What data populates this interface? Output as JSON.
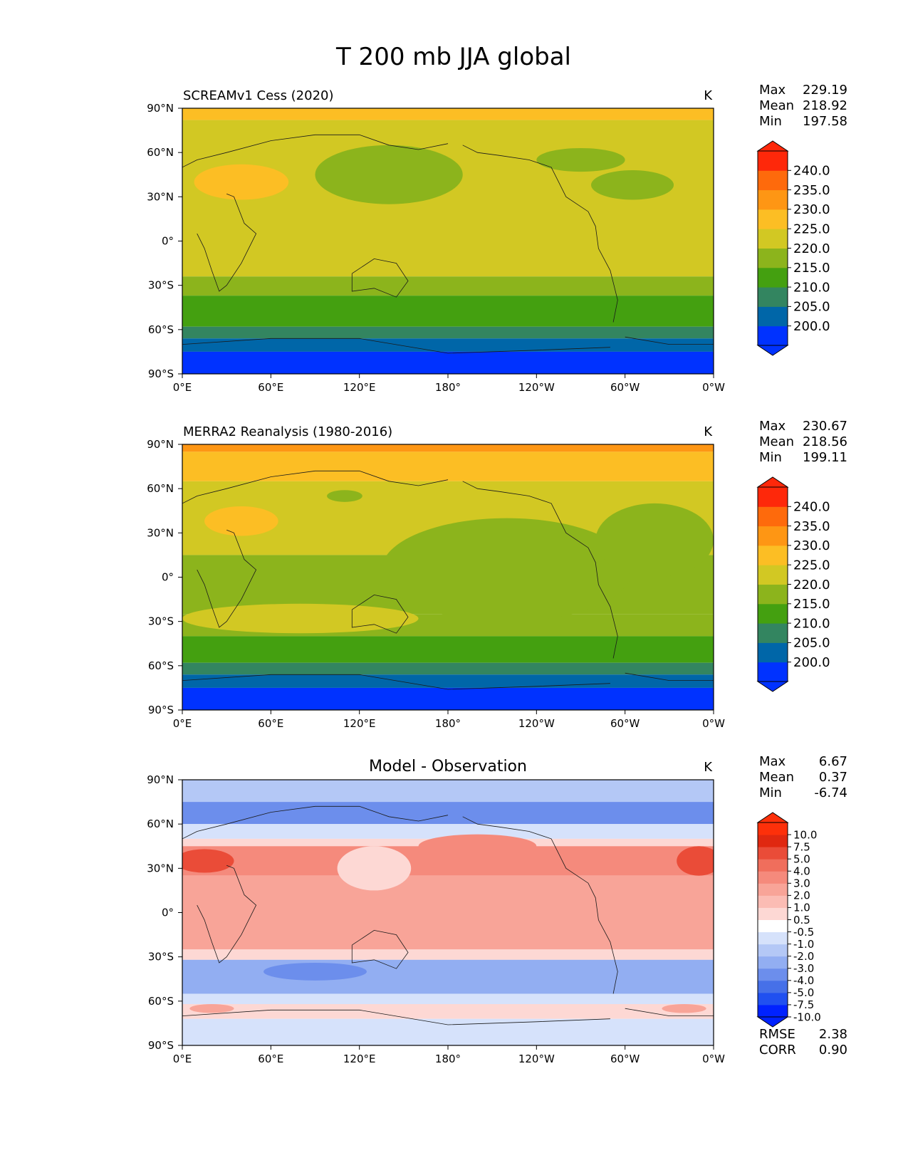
{
  "figure_title": "T 200 mb JJA global",
  "colors": {
    "abs_levels": [
      "#0032ff",
      "#0066a8",
      "#338560",
      "#44a010",
      "#8cb41c",
      "#d2c823",
      "#fcbe24",
      "#fe9614",
      "#fe6a0c",
      "#fe280a"
    ],
    "diff_levels": [
      "#0022ff",
      "#2050f0",
      "#4670e8",
      "#6c8eec",
      "#92aef2",
      "#b4c8f6",
      "#d6e2fb",
      "#ffffff",
      "#fdd8d4",
      "#fbbcb4",
      "#f8a498",
      "#f58a7c",
      "#f06e5c",
      "#ea4c38",
      "#e02810",
      "#fd300a"
    ]
  },
  "map_axes": {
    "x_ticks": [
      "0°E",
      "60°E",
      "120°E",
      "180°",
      "120°W",
      "60°W",
      "0°W"
    ],
    "y_ticks": [
      "90°N",
      "60°N",
      "30°N",
      "0°",
      "30°S",
      "60°S",
      "90°S"
    ]
  },
  "chart_data": [
    {
      "type": "heatmap",
      "title": "SCREAMv1 Cess (2020)",
      "units": "K",
      "xlim": [
        0,
        360
      ],
      "ylim": [
        -90,
        90
      ],
      "stats": [
        {
          "label": "Max",
          "value": "229.19"
        },
        {
          "label": "Mean",
          "value": "218.92"
        },
        {
          "label": "Min",
          "value": "197.58"
        }
      ],
      "colorbar": {
        "levels": [
          195,
          200,
          205,
          210,
          215,
          220,
          225,
          230,
          235,
          240,
          245
        ],
        "tick_labels": [
          "240.0",
          "235.0",
          "230.0",
          "225.0",
          "220.0",
          "215.0",
          "210.0",
          "205.0",
          "200.0"
        ],
        "extend": "both"
      },
      "zonal_bands": [
        {
          "lat_from": 90,
          "lat_to": 82,
          "value": 227.5
        },
        {
          "lat_from": 82,
          "lat_to": -24,
          "value": 222.5
        },
        {
          "lat_from": -24,
          "lat_to": -37,
          "value": 217.5
        },
        {
          "lat_from": -37,
          "lat_to": -58,
          "value": 212.5
        },
        {
          "lat_from": -58,
          "lat_to": -66,
          "value": 207.5
        },
        {
          "lat_from": -66,
          "lat_to": -75,
          "value": 202.5
        },
        {
          "lat_from": -75,
          "lat_to": -90,
          "value": 197.5
        }
      ],
      "features": [
        {
          "lon": 40,
          "lat": 40,
          "rlon": 32,
          "rlat": 12,
          "value": 227.5
        },
        {
          "lon": 140,
          "lat": 45,
          "rlon": 50,
          "rlat": 20,
          "value": 217.5
        },
        {
          "lon": 270,
          "lat": 55,
          "rlon": 30,
          "rlat": 8,
          "value": 217.5
        },
        {
          "lon": 305,
          "lat": 38,
          "rlon": 28,
          "rlat": 10,
          "value": 217.5
        }
      ]
    },
    {
      "type": "heatmap",
      "title": "MERRA2 Reanalysis (1980-2016)",
      "units": "K",
      "xlim": [
        0,
        360
      ],
      "ylim": [
        -90,
        90
      ],
      "stats": [
        {
          "label": "Max",
          "value": "230.67"
        },
        {
          "label": "Mean",
          "value": "218.56"
        },
        {
          "label": "Min",
          "value": "199.11"
        }
      ],
      "colorbar": {
        "levels": [
          195,
          200,
          205,
          210,
          215,
          220,
          225,
          230,
          235,
          240,
          245
        ],
        "tick_labels": [
          "240.0",
          "235.0",
          "230.0",
          "225.0",
          "220.0",
          "215.0",
          "210.0",
          "205.0",
          "200.0"
        ],
        "extend": "both"
      },
      "zonal_bands": [
        {
          "lat_from": 90,
          "lat_to": 85,
          "value": 232.5
        },
        {
          "lat_from": 85,
          "lat_to": 65,
          "value": 227.5
        },
        {
          "lat_from": 65,
          "lat_to": 15,
          "value": 222.5
        },
        {
          "lat_from": 15,
          "lat_to": -25,
          "value": 217.5
        },
        {
          "lat_from": -25,
          "lat_to": -40,
          "value": 217.5
        },
        {
          "lat_from": -40,
          "lat_to": -58,
          "value": 212.5
        },
        {
          "lat_from": -58,
          "lat_to": -66,
          "value": 207.5
        },
        {
          "lat_from": -66,
          "lat_to": -75,
          "value": 202.5
        },
        {
          "lat_from": -75,
          "lat_to": -90,
          "value": 197.5
        }
      ],
      "features": [
        {
          "lon": 40,
          "lat": 38,
          "rlon": 25,
          "rlat": 10,
          "value": 227.5
        },
        {
          "lon": 220,
          "lat": 5,
          "rlon": 85,
          "rlat": 35,
          "value": 217.5
        },
        {
          "lon": 320,
          "lat": 25,
          "rlon": 40,
          "rlat": 25,
          "value": 217.5
        },
        {
          "lon": 80,
          "lat": -28,
          "rlon": 80,
          "rlat": 10,
          "value": 222.5
        },
        {
          "lon": 110,
          "lat": 55,
          "rlon": 12,
          "rlat": 4,
          "value": 217.5
        }
      ]
    },
    {
      "type": "heatmap",
      "title": "Model - Observation",
      "units": "K",
      "xlim": [
        0,
        360
      ],
      "ylim": [
        -90,
        90
      ],
      "stats": [
        {
          "label": "Max",
          "value": "6.67"
        },
        {
          "label": "Mean",
          "value": "0.37"
        },
        {
          "label": "Min",
          "value": "-6.74"
        }
      ],
      "metrics": [
        {
          "label": "RMSE",
          "value": "2.38"
        },
        {
          "label": "CORR",
          "value": "0.90"
        }
      ],
      "colorbar": {
        "levels": [
          -12,
          -10,
          -7.5,
          -5,
          -4,
          -3,
          -2,
          -1,
          -0.5,
          0.5,
          1,
          2,
          3,
          4,
          5,
          7.5,
          10,
          12
        ],
        "tick_labels": [
          "10.0",
          "7.5",
          "5.0",
          "4.0",
          "3.0",
          "2.0",
          "1.0",
          "0.5",
          "-0.5",
          "-1.0",
          "-2.0",
          "-3.0",
          "-4.0",
          "-5.0",
          "-7.5",
          "-10.0"
        ],
        "extend": "both"
      },
      "zonal_bands": [
        {
          "lat_from": 90,
          "lat_to": 75,
          "value": -2.5
        },
        {
          "lat_from": 75,
          "lat_to": 60,
          "value": -4.5
        },
        {
          "lat_from": 60,
          "lat_to": 50,
          "value": -1.5
        },
        {
          "lat_from": 50,
          "lat_to": 45,
          "value": 0
        },
        {
          "lat_from": 45,
          "lat_to": 25,
          "value": 2.5
        },
        {
          "lat_from": 25,
          "lat_to": -25,
          "value": 1.5
        },
        {
          "lat_from": -25,
          "lat_to": -32,
          "value": 0
        },
        {
          "lat_from": -32,
          "lat_to": -55,
          "value": -3.5
        },
        {
          "lat_from": -55,
          "lat_to": -62,
          "value": -1.5
        },
        {
          "lat_from": -62,
          "lat_to": -72,
          "value": 0
        },
        {
          "lat_from": -72,
          "lat_to": -90,
          "value": -1.5
        }
      ],
      "features": [
        {
          "lon": 15,
          "lat": 35,
          "rlon": 20,
          "rlat": 8,
          "value": 4.5
        },
        {
          "lon": 350,
          "lat": 35,
          "rlon": 15,
          "rlat": 10,
          "value": 4.5
        },
        {
          "lon": 130,
          "lat": 30,
          "rlon": 25,
          "rlat": 15,
          "value": 0
        },
        {
          "lon": 200,
          "lat": 45,
          "rlon": 40,
          "rlat": 8,
          "value": 2.5
        },
        {
          "lon": 90,
          "lat": -40,
          "rlon": 35,
          "rlat": 6,
          "value": -4.5
        },
        {
          "lon": 20,
          "lat": -65,
          "rlon": 15,
          "rlat": 3,
          "value": 1.5
        },
        {
          "lon": 340,
          "lat": -65,
          "rlon": 15,
          "rlat": 3,
          "value": 1.5
        }
      ]
    }
  ]
}
